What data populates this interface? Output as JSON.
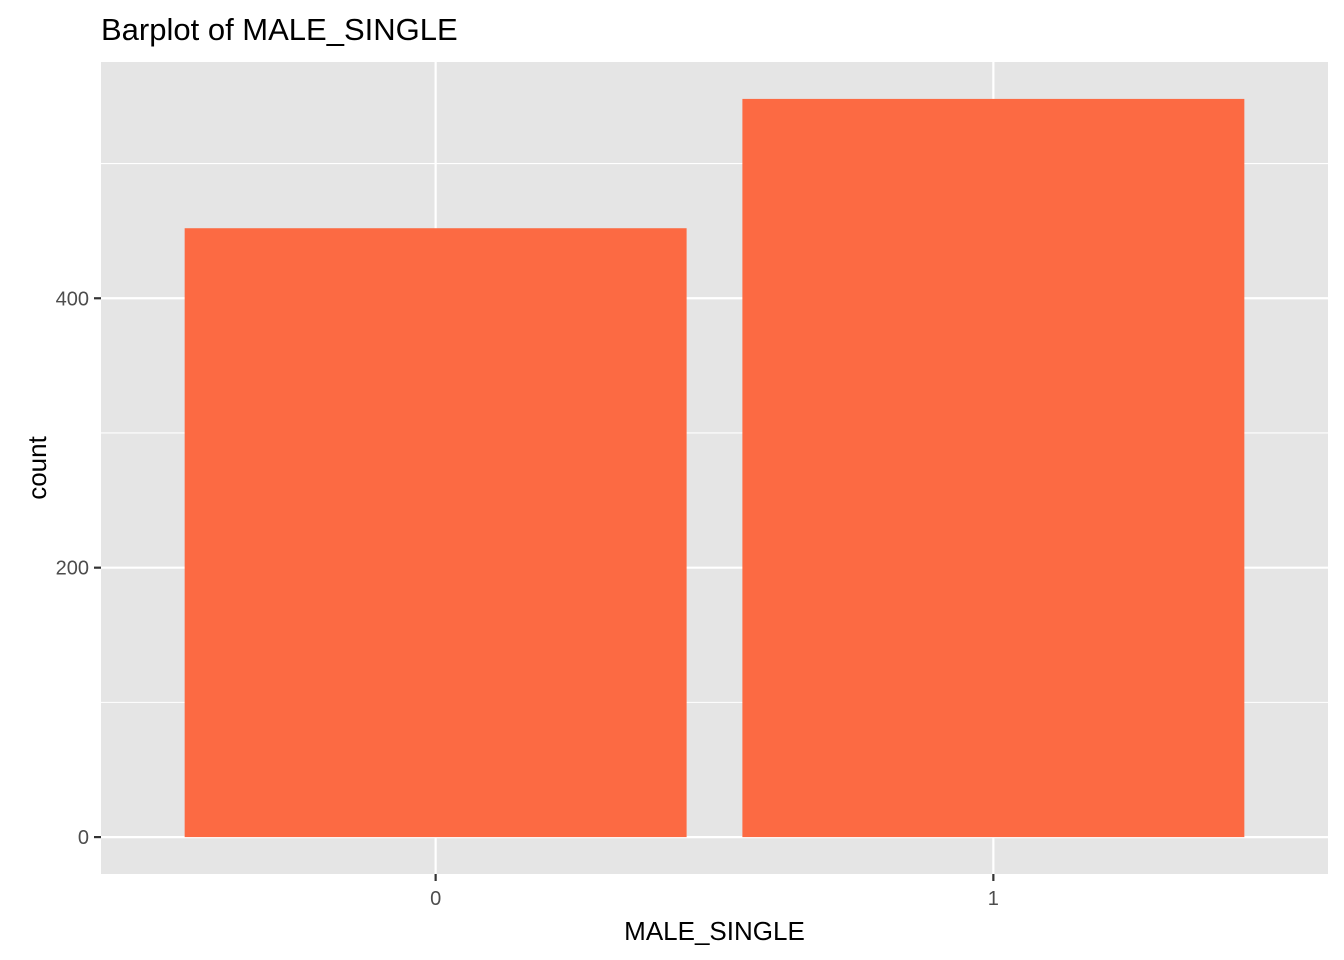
{
  "chart_data": {
    "type": "bar",
    "title": "Barplot of MALE_SINGLE",
    "xlabel": "MALE_SINGLE",
    "ylabel": "count",
    "categories": [
      "0",
      "1"
    ],
    "values": [
      452,
      548
    ],
    "ylim": [
      -27.4,
      575.4
    ],
    "yticks": [
      0,
      200,
      400
    ],
    "ytick_labels": [
      "0",
      "200",
      "400"
    ],
    "grid": true,
    "bar_color": "#FC6A43",
    "panel_background": "#E5E5E5",
    "gridline_color": "#FFFFFF",
    "tick_color": "#333333"
  }
}
